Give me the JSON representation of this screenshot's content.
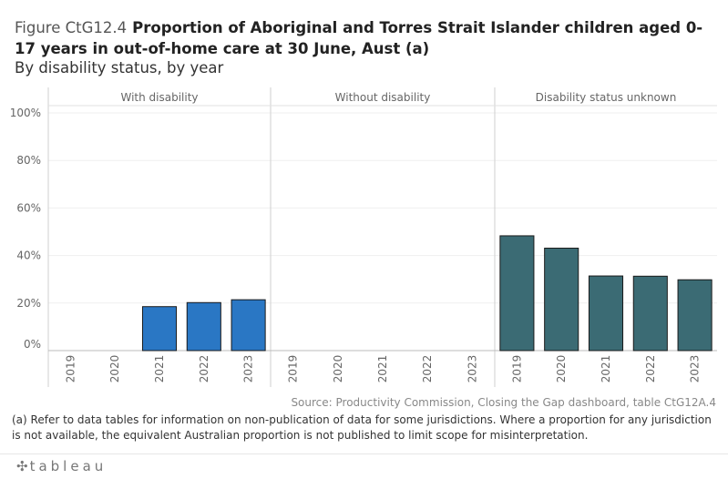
{
  "figure_label": "Figure CtG12.4",
  "title": "Proportion of Aboriginal and Torres Strait Islander children aged 0-17 years in out-of-home care at 30 June, Aust (a)",
  "subtitle": "By disability status, by year",
  "source": "Source: Productivity Commission, Closing the Gap dashboard, table CtG12A.4",
  "footnote": "(a) Refer to data tables for information on non-publication of data for some jurisdictions. Where a proportion for any jurisdiction is not available, the equivalent Australian proportion is not published to limit scope for misinterpretation.",
  "logo_text": "tableau",
  "colors": {
    "with_disability": "#2a77c4",
    "disability_unknown": "#3b6b74",
    "bar_outline": "#1a1a1a",
    "grid": "#efefef",
    "divider": "#cfcfcf"
  },
  "chart_data": {
    "type": "bar",
    "ylim": [
      0,
      100
    ],
    "yticks": [
      "0%",
      "20%",
      "40%",
      "60%",
      "80%",
      "100%"
    ],
    "ytick_values": [
      0,
      20,
      40,
      60,
      80,
      100
    ],
    "categories": [
      "2019",
      "2020",
      "2021",
      "2022",
      "2023"
    ],
    "grid": true,
    "panels": [
      {
        "name": "With disability",
        "values": [
          null,
          null,
          18.5,
          20.2,
          21.4
        ],
        "color": "#2a77c4"
      },
      {
        "name": "Without disability",
        "values": [
          null,
          null,
          null,
          null,
          null
        ],
        "color": "#2a77c4"
      },
      {
        "name": "Disability status unknown",
        "values": [
          48.3,
          43.1,
          31.4,
          31.3,
          29.8
        ],
        "color": "#3b6b74"
      }
    ]
  }
}
